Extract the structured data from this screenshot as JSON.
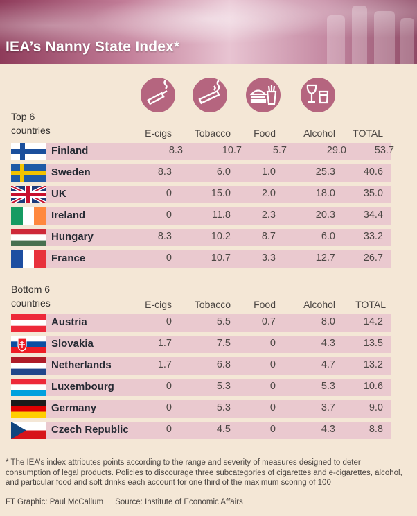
{
  "title": "IEA’s Nanny State Index*",
  "icons": [
    "e-cigarette-icon",
    "cigarette-icon",
    "burger-fries-icon",
    "wine-beer-icon"
  ],
  "chart_data": {
    "type": "table",
    "columns": [
      "E-cigs",
      "Tobacco",
      "Food",
      "Alcohol",
      "TOTAL"
    ],
    "sections": [
      {
        "label_line1": "Top 6",
        "label_line2": "countries",
        "rows": [
          {
            "country": "Finland",
            "values": [
              "8.3",
              "10.7",
              "5.7",
              "29.0",
              "53.7"
            ]
          },
          {
            "country": "Sweden",
            "values": [
              "8.3",
              "6.0",
              "1.0",
              "25.3",
              "40.6"
            ]
          },
          {
            "country": "UK",
            "values": [
              "0",
              "15.0",
              "2.0",
              "18.0",
              "35.0"
            ]
          },
          {
            "country": "Ireland",
            "values": [
              "0",
              "11.8",
              "2.3",
              "20.3",
              "34.4"
            ]
          },
          {
            "country": "Hungary",
            "values": [
              "8.3",
              "10.2",
              "8.7",
              "6.0",
              "33.2"
            ]
          },
          {
            "country": "France",
            "values": [
              "0",
              "10.7",
              "3.3",
              "12.7",
              "26.7"
            ]
          }
        ]
      },
      {
        "label_line1": "Bottom 6",
        "label_line2": "countries",
        "rows": [
          {
            "country": "Austria",
            "values": [
              "0",
              "5.5",
              "0.7",
              "8.0",
              "14.2"
            ]
          },
          {
            "country": "Slovakia",
            "values": [
              "1.7",
              "7.5",
              "0",
              "4.3",
              "13.5"
            ]
          },
          {
            "country": "Netherlands",
            "values": [
              "1.7",
              "6.8",
              "0",
              "4.7",
              "13.2"
            ]
          },
          {
            "country": "Luxembourg",
            "values": [
              "0",
              "5.3",
              "0",
              "5.3",
              "10.6"
            ]
          },
          {
            "country": "Germany",
            "values": [
              "0",
              "5.3",
              "0",
              "3.7",
              "9.0"
            ]
          },
          {
            "country": "Czech Republic",
            "values": [
              "0",
              "4.5",
              "0",
              "4.3",
              "8.8"
            ]
          }
        ]
      }
    ]
  },
  "colors": {
    "band": "#eac9cf",
    "background": "#f4e7d6",
    "icon_bg": "#b5657f"
  },
  "footnote": "* The IEA’s index attributes points according to the range and severity of measures designed to deter consumption of legal products. Policies to discourage three subcategories of cigarettes and e-cigarettes, alcohol, and particular food and soft drinks each account for one third of the maximum scoring of 100",
  "credit": {
    "graphic": "FT Graphic: Paul McCallum",
    "source": "Source:  Institute of Economic Affairs"
  }
}
